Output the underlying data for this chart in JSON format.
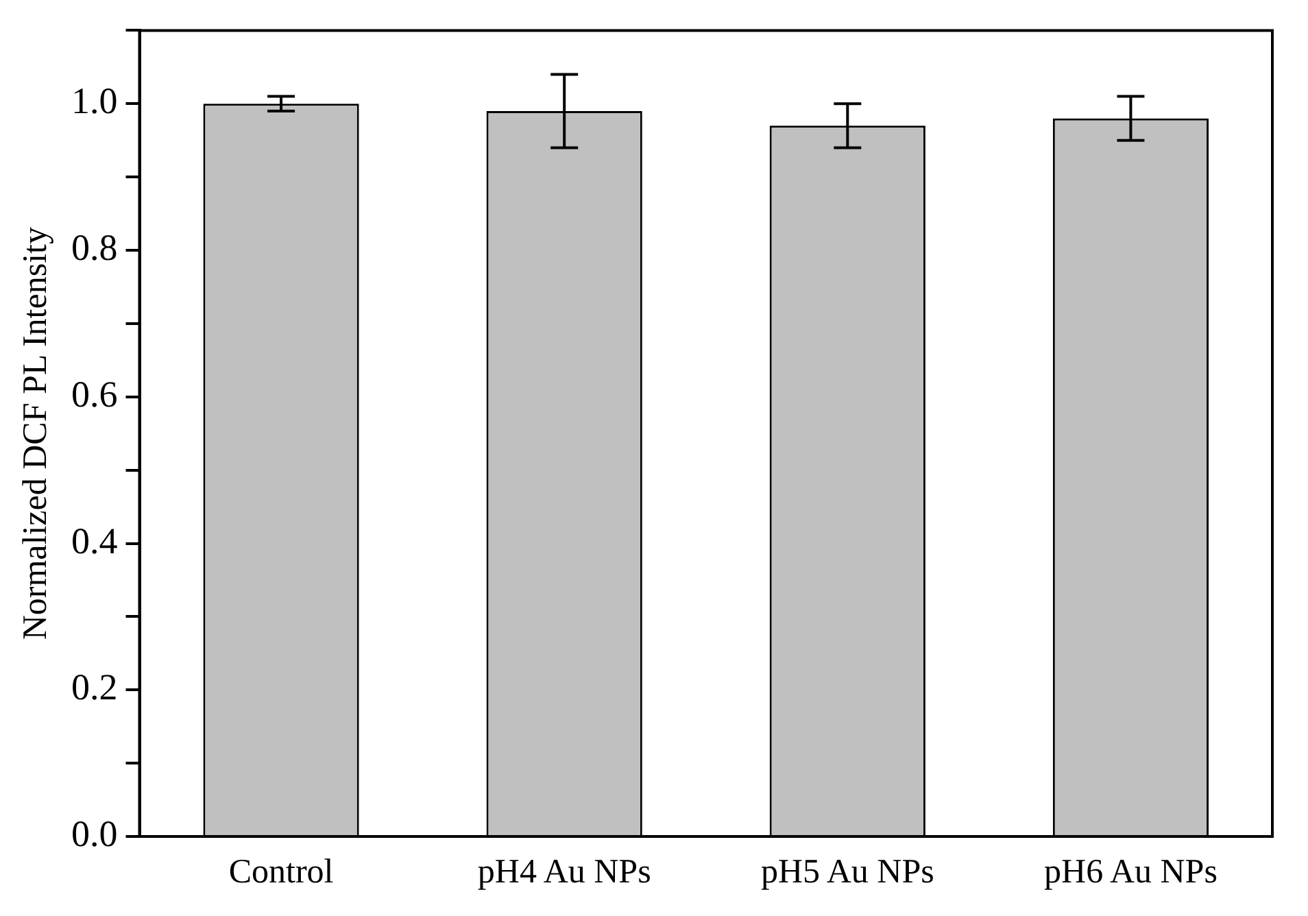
{
  "chart_data": {
    "type": "bar",
    "ylabel": "Normalized DCF PL Intensity",
    "categories": [
      "Control",
      "pH4 Au NPs",
      "pH5 Au NPs",
      "pH6 Au NPs"
    ],
    "values": [
      1.0,
      0.99,
      0.97,
      0.98
    ],
    "errors": [
      0.01,
      0.05,
      0.03,
      0.03
    ],
    "color": "#c0c0c0",
    "ylim": [
      0,
      1.1
    ],
    "yticks": [
      {
        "value": 0,
        "label": "0.0"
      },
      {
        "value": 0.1,
        "label": null
      },
      0.2,
      {
        "value": 0.3,
        "label": null
      },
      0.4,
      {
        "value": 0.5,
        "label": null
      },
      0.6,
      {
        "value": 0.7,
        "label": null
      },
      0.8,
      {
        "value": 0.9,
        "label": null
      },
      {
        "value": 1,
        "label": "1.0"
      },
      {
        "value": 1.1,
        "label": null
      }
    ],
    "legend": false
  }
}
